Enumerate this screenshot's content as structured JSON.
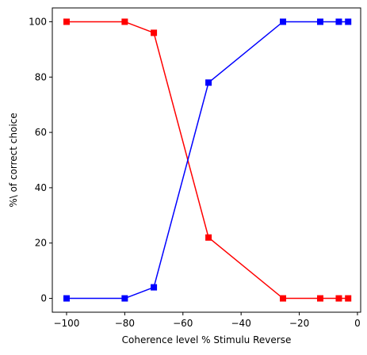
{
  "chart_data": {
    "type": "line",
    "title": "",
    "xlabel": "Coherence level % Stimulu Reverse",
    "ylabel": "%\\ of correct choice",
    "xlim": [
      -104.9,
      1.1
    ],
    "ylim": [
      -5,
      105
    ],
    "xticks": [
      -100,
      -80,
      -60,
      -40,
      -20,
      0
    ],
    "yticks": [
      0,
      20,
      40,
      60,
      80,
      100
    ],
    "grid": false,
    "legend": "none",
    "series": [
      {
        "color": "#ff0000",
        "marker": "square",
        "x": [
          -100,
          -80,
          -70,
          -51.2,
          -25.6,
          -12.8,
          -6.4,
          -3.2
        ],
        "y": [
          100,
          100,
          96,
          22,
          0,
          0,
          0,
          0
        ]
      },
      {
        "color": "#0000ff",
        "marker": "square",
        "x": [
          -100,
          -80,
          -70,
          -51.2,
          -25.6,
          -12.8,
          -6.4,
          -3.2
        ],
        "y": [
          0,
          0,
          4,
          78,
          100,
          100,
          100,
          100
        ]
      }
    ]
  }
}
